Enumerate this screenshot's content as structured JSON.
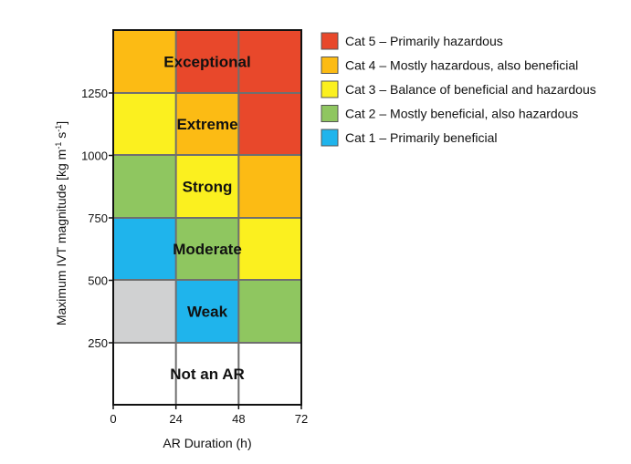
{
  "chart_data": {
    "type": "heatmap",
    "xlabel": "AR Duration (h)",
    "ylabel": "Maximum IVT magnitude [kg m",
    "ylabel_sup1": "-1",
    "ylabel_mid": " s",
    "ylabel_sup2": "-1",
    "ylabel_end": "]",
    "x_ticks": [
      "0",
      "24",
      "48",
      "72"
    ],
    "y_ticks": [
      "250",
      "500",
      "750",
      "1000",
      "1250"
    ],
    "x_bins": [
      0,
      24,
      48,
      72
    ],
    "y_bins": [
      1250,
      1000,
      750,
      500,
      250,
      100
    ],
    "cells": [
      [
        "cat4",
        "cat5",
        "cat5"
      ],
      [
        "cat3",
        "cat4",
        "cat5"
      ],
      [
        "cat2",
        "cat3",
        "cat4"
      ],
      [
        "cat1",
        "cat2",
        "cat3"
      ],
      [
        "none",
        "cat1",
        "cat2"
      ],
      [
        "white",
        "white",
        "white"
      ]
    ],
    "intensity_labels": [
      {
        "text": "Exceptional",
        "row": 0
      },
      {
        "text": "Extreme",
        "row": 1
      },
      {
        "text": "Strong",
        "row": 2
      },
      {
        "text": "Moderate",
        "row": 3
      },
      {
        "text": "Weak",
        "row": 4
      },
      {
        "text": "Not an AR",
        "row": 5
      }
    ],
    "colors": {
      "cat5": "#e8482b",
      "cat4": "#fcbb14",
      "cat3": "#fbf01f",
      "cat2": "#8fc660",
      "cat1": "#1fb4ec",
      "none": "#d0d1d2",
      "white": "#ffffff",
      "grid": "#6f6f6f"
    },
    "legend": [
      {
        "key": "cat5",
        "label": "Cat 5 – Primarily hazardous"
      },
      {
        "key": "cat4",
        "label": "Cat 4 – Mostly hazardous, also beneficial"
      },
      {
        "key": "cat3",
        "label": "Cat 3 – Balance of beneficial and hazardous"
      },
      {
        "key": "cat2",
        "label": "Cat 2 – Mostly beneficial, also hazardous"
      },
      {
        "key": "cat1",
        "label": "Cat 1 – Primarily beneficial"
      }
    ]
  }
}
